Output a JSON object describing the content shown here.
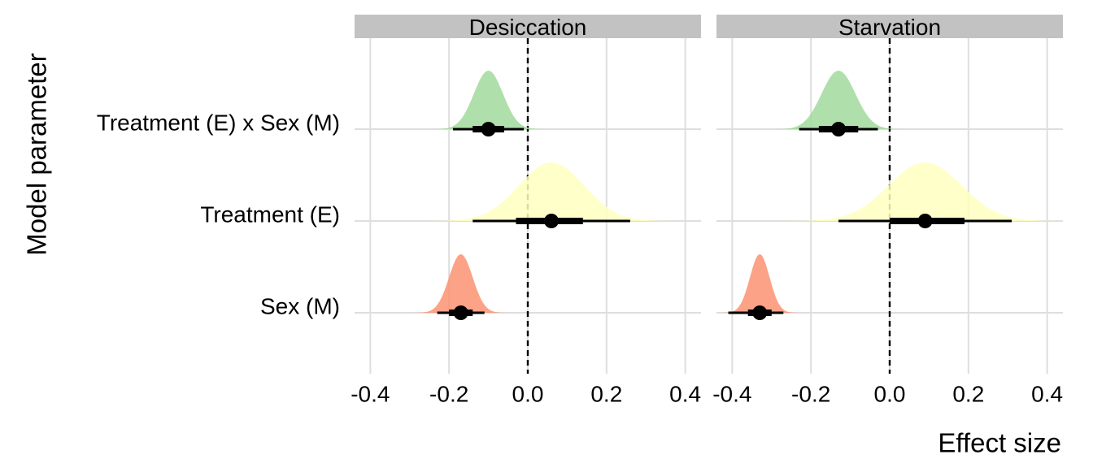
{
  "chart_data": {
    "type": "halfeye",
    "xlabel": "Effect size",
    "ylabel": "Model parameter",
    "xlim": [
      -0.44,
      0.44
    ],
    "x_ticks": [
      -0.4,
      -0.2,
      0.0,
      0.2,
      0.4
    ],
    "x_tick_labels": [
      "-0.4",
      "-0.2",
      "0.0",
      "0.2",
      "0.4"
    ],
    "reference_line": 0,
    "grid": true,
    "legend": "none",
    "parameters": [
      "Treatment (E) x Sex (M)",
      "Treatment (E)",
      "Sex (M)"
    ],
    "colors": {
      "Treatment (E) x Sex (M)": "#a1d99b",
      "Treatment (E)": "#ffffbf",
      "Sex (M)": "#fc9272"
    },
    "panels": [
      {
        "title": "Desiccation",
        "estimates": [
          {
            "parameter": "Treatment (E) x Sex (M)",
            "median": -0.1,
            "sd": 0.037,
            "ci66": [
              -0.14,
              -0.06
            ],
            "ci95": [
              -0.19,
              -0.01
            ]
          },
          {
            "parameter": "Treatment (E)",
            "median": 0.06,
            "sd": 0.083,
            "ci66": [
              -0.03,
              0.14
            ],
            "ci95": [
              -0.14,
              0.26
            ]
          },
          {
            "parameter": "Sex (M)",
            "median": -0.17,
            "sd": 0.03,
            "ci66": [
              -0.2,
              -0.14
            ],
            "ci95": [
              -0.23,
              -0.11
            ]
          }
        ]
      },
      {
        "title": "Starvation",
        "estimates": [
          {
            "parameter": "Treatment (E) x Sex (M)",
            "median": -0.13,
            "sd": 0.043,
            "ci66": [
              -0.18,
              -0.08
            ],
            "ci95": [
              -0.23,
              -0.03
            ]
          },
          {
            "parameter": "Treatment (E)",
            "median": 0.09,
            "sd": 0.093,
            "ci66": [
              0.0,
              0.19
            ],
            "ci95": [
              -0.13,
              0.31
            ]
          },
          {
            "parameter": "Sex (M)",
            "median": -0.33,
            "sd": 0.025,
            "ci66": [
              -0.36,
              -0.3
            ],
            "ci95": [
              -0.41,
              -0.27
            ]
          }
        ]
      }
    ]
  }
}
